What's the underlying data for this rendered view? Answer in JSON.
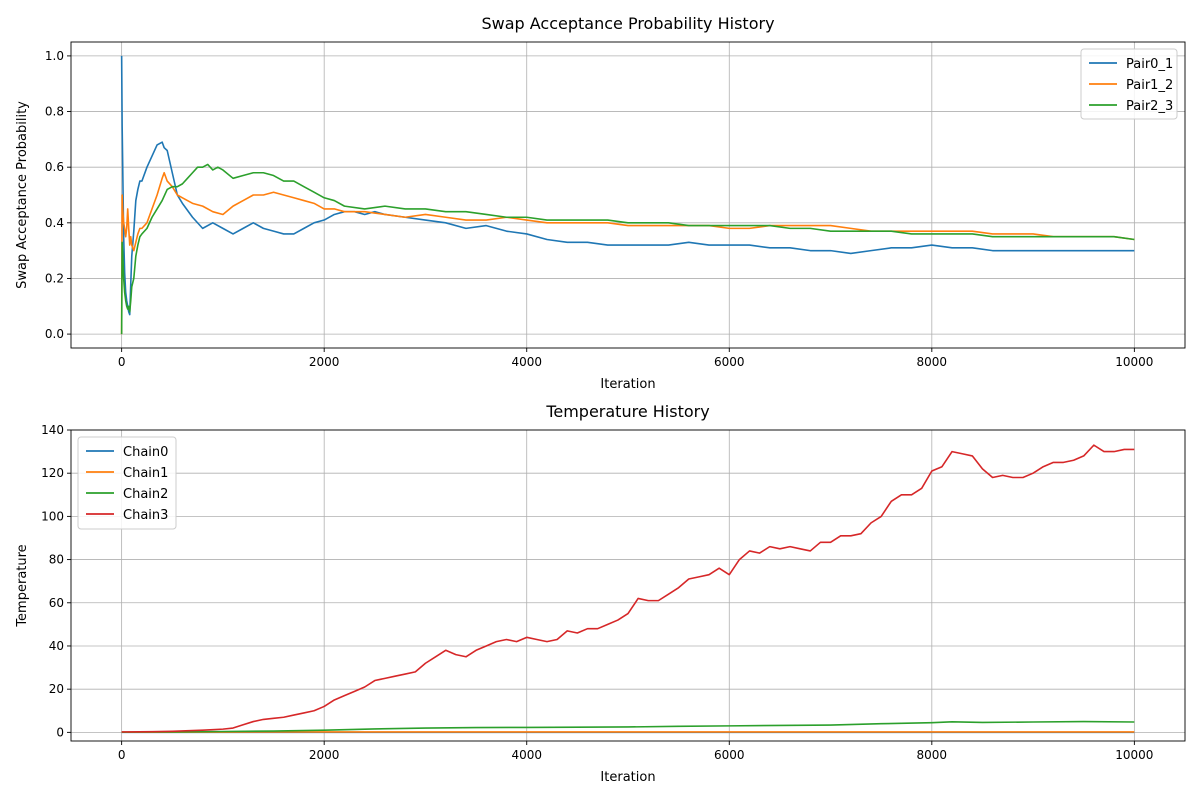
{
  "chart_data": [
    {
      "type": "line",
      "title": "Swap Acceptance Probability History",
      "xlabel": "Iteration",
      "ylabel": "Swap Acceptance Probability",
      "xlim": [
        -500,
        10500
      ],
      "ylim": [
        -0.05,
        1.05
      ],
      "xticks": [
        0,
        2000,
        4000,
        6000,
        8000,
        10000
      ],
      "yticks": [
        0.0,
        0.2,
        0.4,
        0.6,
        0.8,
        1.0
      ],
      "xtick_labels": [
        "0",
        "2000",
        "4000",
        "6000",
        "8000",
        "10000"
      ],
      "ytick_labels": [
        "0.0",
        "0.2",
        "0.4",
        "0.6",
        "0.8",
        "1.0"
      ],
      "grid": true,
      "legend_position": "top-right",
      "series": [
        {
          "name": "Pair0_1",
          "color": "#1f77b4",
          "x": [
            0,
            5,
            10,
            20,
            30,
            40,
            50,
            60,
            70,
            80,
            90,
            100,
            120,
            140,
            160,
            180,
            200,
            250,
            300,
            350,
            400,
            420,
            450,
            500,
            550,
            600,
            700,
            800,
            900,
            1000,
            1100,
            1200,
            1300,
            1400,
            1500,
            1600,
            1700,
            1800,
            1900,
            2000,
            2100,
            2200,
            2300,
            2400,
            2500,
            2600,
            2800,
            3000,
            3200,
            3400,
            3600,
            3800,
            4000,
            4200,
            4400,
            4600,
            4800,
            5000,
            5200,
            5400,
            5600,
            5800,
            6000,
            6200,
            6400,
            6600,
            6800,
            7000,
            7200,
            7400,
            7600,
            7800,
            8000,
            8200,
            8400,
            8600,
            8800,
            9000,
            9200,
            9400,
            9600,
            9800,
            10000
          ],
          "y": [
            1.0,
            0.75,
            0.62,
            0.35,
            0.22,
            0.15,
            0.12,
            0.1,
            0.08,
            0.07,
            0.18,
            0.28,
            0.37,
            0.48,
            0.52,
            0.55,
            0.55,
            0.6,
            0.64,
            0.68,
            0.69,
            0.67,
            0.66,
            0.58,
            0.5,
            0.47,
            0.42,
            0.38,
            0.4,
            0.38,
            0.36,
            0.38,
            0.4,
            0.38,
            0.37,
            0.36,
            0.36,
            0.38,
            0.4,
            0.41,
            0.43,
            0.44,
            0.44,
            0.43,
            0.44,
            0.43,
            0.42,
            0.41,
            0.4,
            0.38,
            0.39,
            0.37,
            0.36,
            0.34,
            0.33,
            0.33,
            0.32,
            0.32,
            0.32,
            0.32,
            0.33,
            0.32,
            0.32,
            0.32,
            0.31,
            0.31,
            0.3,
            0.3,
            0.29,
            0.3,
            0.31,
            0.31,
            0.32,
            0.31,
            0.31,
            0.3,
            0.3,
            0.3,
            0.3,
            0.3,
            0.3,
            0.3,
            0.3
          ]
        },
        {
          "name": "Pair1_2",
          "color": "#ff7f0e",
          "x": [
            0,
            5,
            10,
            20,
            30,
            40,
            50,
            60,
            70,
            80,
            90,
            100,
            120,
            140,
            160,
            180,
            200,
            250,
            300,
            350,
            400,
            420,
            450,
            500,
            550,
            600,
            700,
            800,
            900,
            1000,
            1100,
            1200,
            1300,
            1400,
            1500,
            1600,
            1700,
            1800,
            1900,
            2000,
            2100,
            2200,
            2400,
            2600,
            2800,
            3000,
            3200,
            3400,
            3600,
            3800,
            4000,
            4200,
            4400,
            4600,
            4800,
            5000,
            5200,
            5400,
            5600,
            5800,
            6000,
            6200,
            6400,
            6600,
            6800,
            7000,
            7200,
            7400,
            7600,
            7800,
            8000,
            8200,
            8400,
            8600,
            8800,
            9000,
            9200,
            9400,
            9600,
            9800,
            10000
          ],
          "y": [
            0.0,
            0.5,
            0.45,
            0.4,
            0.38,
            0.35,
            0.38,
            0.45,
            0.38,
            0.32,
            0.35,
            0.32,
            0.3,
            0.33,
            0.36,
            0.38,
            0.38,
            0.4,
            0.45,
            0.5,
            0.56,
            0.58,
            0.55,
            0.53,
            0.5,
            0.49,
            0.47,
            0.46,
            0.44,
            0.43,
            0.46,
            0.48,
            0.5,
            0.5,
            0.51,
            0.5,
            0.49,
            0.48,
            0.47,
            0.45,
            0.45,
            0.44,
            0.44,
            0.43,
            0.42,
            0.43,
            0.42,
            0.41,
            0.41,
            0.42,
            0.41,
            0.4,
            0.4,
            0.4,
            0.4,
            0.39,
            0.39,
            0.39,
            0.39,
            0.39,
            0.38,
            0.38,
            0.39,
            0.39,
            0.39,
            0.39,
            0.38,
            0.37,
            0.37,
            0.37,
            0.37,
            0.37,
            0.37,
            0.36,
            0.36,
            0.36,
            0.35,
            0.35,
            0.35,
            0.35,
            0.34
          ]
        },
        {
          "name": "Pair2_3",
          "color": "#2ca02c",
          "x": [
            0,
            5,
            10,
            20,
            30,
            40,
            50,
            60,
            70,
            80,
            90,
            100,
            120,
            140,
            160,
            180,
            200,
            250,
            300,
            350,
            400,
            450,
            500,
            550,
            600,
            650,
            700,
            750,
            800,
            850,
            900,
            950,
            1000,
            1100,
            1200,
            1300,
            1400,
            1500,
            1600,
            1700,
            1800,
            1900,
            2000,
            2100,
            2200,
            2400,
            2600,
            2800,
            3000,
            3200,
            3400,
            3600,
            3800,
            4000,
            4200,
            4400,
            4600,
            4800,
            5000,
            5200,
            5400,
            5600,
            5800,
            6000,
            6200,
            6400,
            6600,
            6800,
            7000,
            7200,
            7400,
            7600,
            7800,
            8000,
            8200,
            8400,
            8600,
            8800,
            9000,
            9200,
            9400,
            9600,
            9800,
            10000
          ],
          "y": [
            0.0,
            0.33,
            0.3,
            0.2,
            0.15,
            0.12,
            0.1,
            0.09,
            0.1,
            0.08,
            0.12,
            0.17,
            0.2,
            0.28,
            0.32,
            0.35,
            0.36,
            0.38,
            0.42,
            0.45,
            0.48,
            0.52,
            0.53,
            0.53,
            0.54,
            0.56,
            0.58,
            0.6,
            0.6,
            0.61,
            0.59,
            0.6,
            0.59,
            0.56,
            0.57,
            0.58,
            0.58,
            0.57,
            0.55,
            0.55,
            0.53,
            0.51,
            0.49,
            0.48,
            0.46,
            0.45,
            0.46,
            0.45,
            0.45,
            0.44,
            0.44,
            0.43,
            0.42,
            0.42,
            0.41,
            0.41,
            0.41,
            0.41,
            0.4,
            0.4,
            0.4,
            0.39,
            0.39,
            0.39,
            0.39,
            0.39,
            0.38,
            0.38,
            0.37,
            0.37,
            0.37,
            0.37,
            0.36,
            0.36,
            0.36,
            0.36,
            0.35,
            0.35,
            0.35,
            0.35,
            0.35,
            0.35,
            0.35,
            0.34
          ]
        }
      ]
    },
    {
      "type": "line",
      "title": "Temperature History",
      "xlabel": "Iteration",
      "ylabel": "Temperature",
      "xlim": [
        -500,
        10500
      ],
      "ylim": [
        -4,
        140
      ],
      "xticks": [
        0,
        2000,
        4000,
        6000,
        8000,
        10000
      ],
      "yticks": [
        0,
        20,
        40,
        60,
        80,
        100,
        120,
        140
      ],
      "xtick_labels": [
        "0",
        "2000",
        "4000",
        "6000",
        "8000",
        "10000"
      ],
      "ytick_labels": [
        "0",
        "20",
        "40",
        "60",
        "80",
        "100",
        "120",
        "140"
      ],
      "grid": true,
      "legend_position": "top-left",
      "series": [
        {
          "name": "Chain0",
          "color": "#1f77b4",
          "x": [
            0,
            2000,
            4000,
            6000,
            8000,
            10000
          ],
          "y": [
            0.0,
            0.0,
            0.0,
            0.0,
            0.0,
            0.0
          ]
        },
        {
          "name": "Chain1",
          "color": "#ff7f0e",
          "x": [
            0,
            1000,
            2000,
            4000,
            6000,
            8000,
            10000
          ],
          "y": [
            0.1,
            0.15,
            0.2,
            0.2,
            0.2,
            0.2,
            0.2
          ]
        },
        {
          "name": "Chain2",
          "color": "#2ca02c",
          "x": [
            0,
            500,
            1000,
            1500,
            2000,
            2500,
            3000,
            3500,
            4000,
            4500,
            5000,
            5500,
            6000,
            6500,
            7000,
            7500,
            8000,
            8200,
            8500,
            9000,
            9500,
            10000
          ],
          "y": [
            0.1,
            0.2,
            0.4,
            0.6,
            1.0,
            1.6,
            2.0,
            2.2,
            2.3,
            2.4,
            2.5,
            2.8,
            3.0,
            3.2,
            3.4,
            4.0,
            4.5,
            4.9,
            4.6,
            4.8,
            5.0,
            4.8
          ]
        },
        {
          "name": "Chain3",
          "color": "#d62728",
          "x": [
            0,
            300,
            500,
            800,
            1000,
            1100,
            1200,
            1300,
            1400,
            1500,
            1600,
            1700,
            1800,
            1900,
            2000,
            2100,
            2200,
            2300,
            2400,
            2500,
            2600,
            2700,
            2800,
            2900,
            3000,
            3100,
            3200,
            3300,
            3400,
            3500,
            3600,
            3700,
            3800,
            3900,
            4000,
            4100,
            4200,
            4300,
            4400,
            4500,
            4600,
            4700,
            4800,
            4900,
            5000,
            5100,
            5200,
            5300,
            5400,
            5500,
            5600,
            5700,
            5800,
            5900,
            6000,
            6100,
            6200,
            6300,
            6400,
            6500,
            6600,
            6700,
            6800,
            6900,
            7000,
            7100,
            7200,
            7300,
            7400,
            7500,
            7600,
            7700,
            7800,
            7900,
            8000,
            8100,
            8200,
            8300,
            8400,
            8500,
            8600,
            8700,
            8800,
            8900,
            9000,
            9100,
            9200,
            9300,
            9400,
            9500,
            9600,
            9700,
            9800,
            9900,
            10000
          ],
          "y": [
            0.2,
            0.3,
            0.5,
            1.0,
            1.5,
            2.0,
            3.5,
            5.0,
            6.0,
            6.5,
            7.0,
            8.0,
            9.0,
            10.0,
            12.0,
            15.0,
            17.0,
            19.0,
            21.0,
            24.0,
            25.0,
            26.0,
            27.0,
            28.0,
            32.0,
            35.0,
            38.0,
            36.0,
            35.0,
            38.0,
            40.0,
            42.0,
            43.0,
            42.0,
            44.0,
            43.0,
            42.0,
            43.0,
            47.0,
            46.0,
            48.0,
            48.0,
            50.0,
            52.0,
            55.0,
            62.0,
            61.0,
            61.0,
            64.0,
            67.0,
            71.0,
            72.0,
            73.0,
            76.0,
            73.0,
            80.0,
            84.0,
            83.0,
            86.0,
            85.0,
            86.0,
            85.0,
            84.0,
            88.0,
            88.0,
            91.0,
            91.0,
            92.0,
            97.0,
            100.0,
            107.0,
            110.0,
            110.0,
            113.0,
            121.0,
            123.0,
            130.0,
            129.0,
            128.0,
            122.0,
            118.0,
            119.0,
            118.0,
            118.0,
            120.0,
            123.0,
            125.0,
            125.0,
            126.0,
            128.0,
            133.0,
            130.0,
            130.0,
            131.0,
            131.0
          ]
        }
      ]
    }
  ]
}
